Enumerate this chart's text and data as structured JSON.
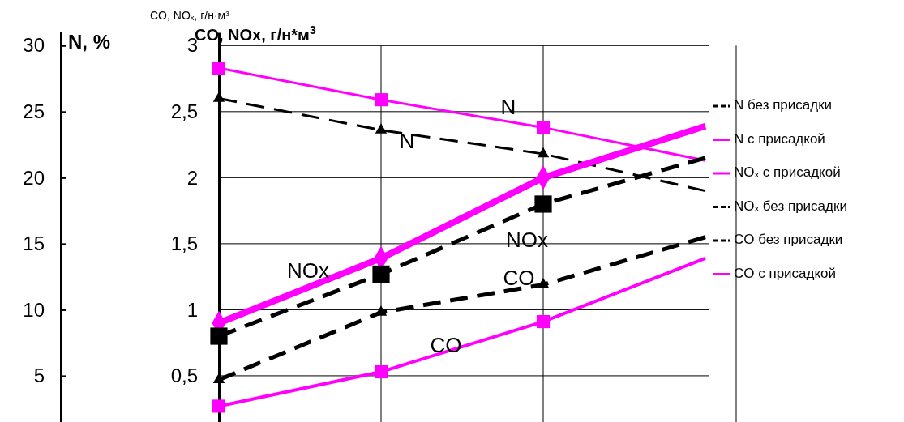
{
  "chart_data": {
    "type": "line",
    "title": "CO, NOₓ, г/н·м³",
    "ylabel": "CO, NOx, г/н*м$^{3}$",
    "y2label": "N, %",
    "categories": [
      null,
      null,
      null,
      null
    ],
    "ylim": [
      0.15,
      3.1
    ],
    "yticks": [
      {
        "value": 0.5,
        "label": "0,5"
      },
      {
        "value": 1,
        "label": "1"
      },
      {
        "value": 1.5,
        "label": "1,5"
      },
      {
        "value": 2,
        "label": "2"
      },
      {
        "value": 2.5,
        "label": "2,5"
      },
      {
        "value": 3,
        "label": "3"
      }
    ],
    "y2lim": [
      1.5,
      31
    ],
    "y2ticks": [
      5,
      10,
      15,
      20,
      25,
      30
    ],
    "grid": true,
    "legend": "right",
    "series": [
      {
        "name": "N без присадки",
        "color": "#000000",
        "axis": "y2",
        "marker": "triangle",
        "line_style": "dashed",
        "values": [
          26.0,
          23.6,
          21.8,
          19.0
        ]
      },
      {
        "name": "N с присадкой",
        "color": "#ff00ff",
        "axis": "y2",
        "marker": "square",
        "line_style": "solid",
        "values": [
          28.3,
          25.9,
          23.8,
          21.3
        ]
      },
      {
        "name": "NOₓ с присадкой",
        "color": "#ff00ff",
        "marker": "diamond",
        "line_style": "solid",
        "values": [
          0.9,
          1.39,
          2.0,
          2.39
        ]
      },
      {
        "name": "NOₓ без присадки",
        "color": "#000000",
        "marker": "square",
        "line_style": "dashed",
        "values": [
          0.8,
          1.27,
          1.8,
          2.15
        ]
      },
      {
        "name": "CO без присадки",
        "color": "#000000",
        "marker": "triangle",
        "line_style": "dashed",
        "values": [
          0.47,
          0.98,
          1.19,
          1.55
        ]
      },
      {
        "name": "CO с присадкой",
        "color": "#ff00ff",
        "marker": "square",
        "line_style": "solid",
        "values": [
          0.27,
          0.53,
          0.91,
          1.39
        ]
      }
    ],
    "annotations": [
      "N",
      "N",
      "NOx",
      "NOx",
      "CO",
      "CO"
    ]
  }
}
